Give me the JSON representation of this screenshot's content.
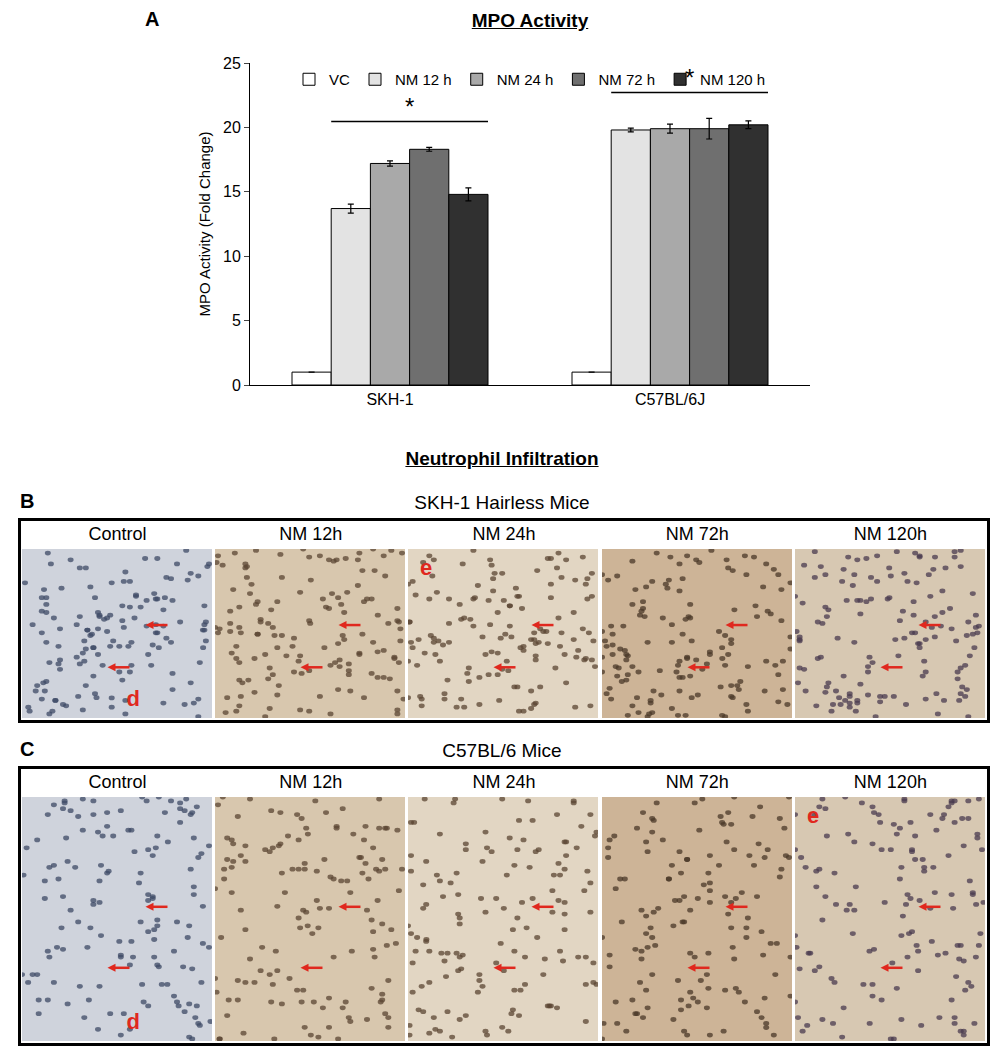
{
  "chart_data": {
    "type": "bar",
    "panel": "A",
    "title": "MPO Activity",
    "categories": [
      "SKH-1",
      "C57BL/6J"
    ],
    "series": [
      {
        "name": "VC",
        "color": "#ffffff",
        "values": [
          1,
          1
        ],
        "errors": [
          0,
          0
        ]
      },
      {
        "name": "NM 12 h",
        "color": "#e3e3e3",
        "values": [
          13.7,
          19.8
        ],
        "errors": [
          0.35,
          0.15
        ]
      },
      {
        "name": "NM 24 h",
        "color": "#a9a9a9",
        "values": [
          17.2,
          19.9
        ],
        "errors": [
          0.2,
          0.35
        ]
      },
      {
        "name": "NM 72 h",
        "color": "#6f6f6f",
        "values": [
          18.3,
          19.9
        ],
        "errors": [
          0.15,
          0.8
        ]
      },
      {
        "name": "NM 120 h",
        "color": "#303030",
        "values": [
          14.8,
          20.2
        ],
        "errors": [
          0.5,
          0.3
        ]
      }
    ],
    "ylabel": "MPO Activity (Fold Change)",
    "ylim": [
      0,
      25
    ],
    "yticks": [
      0,
      5,
      10,
      15,
      20,
      25
    ],
    "grid": false,
    "legend": "top",
    "significance": [
      {
        "category": "SKH-1",
        "label": "*",
        "from": "NM 12 h",
        "to": "NM 120 h"
      },
      {
        "category": "C57BL/6J",
        "label": "*",
        "from": "NM 12 h",
        "to": "NM 120 h"
      }
    ]
  },
  "figure": {
    "title": "Neutrophil Infiltration",
    "rows": [
      {
        "panel": "B",
        "title": "SKH-1 Hairless Mice",
        "images": [
          {
            "label": "Control",
            "marks": [
              "d"
            ]
          },
          {
            "label": "NM 12h",
            "marks": []
          },
          {
            "label": "NM 24h",
            "marks": [
              "e"
            ]
          },
          {
            "label": "NM 72h",
            "marks": []
          },
          {
            "label": "NM 120h",
            "marks": []
          }
        ]
      },
      {
        "panel": "C",
        "title": "C57BL/6 Mice",
        "images": [
          {
            "label": "Control",
            "marks": [
              "d"
            ]
          },
          {
            "label": "NM 12h",
            "marks": []
          },
          {
            "label": "NM 24h",
            "marks": []
          },
          {
            "label": "NM 72h",
            "marks": []
          },
          {
            "label": "NM 120h",
            "marks": [
              "e"
            ]
          }
        ]
      }
    ]
  }
}
